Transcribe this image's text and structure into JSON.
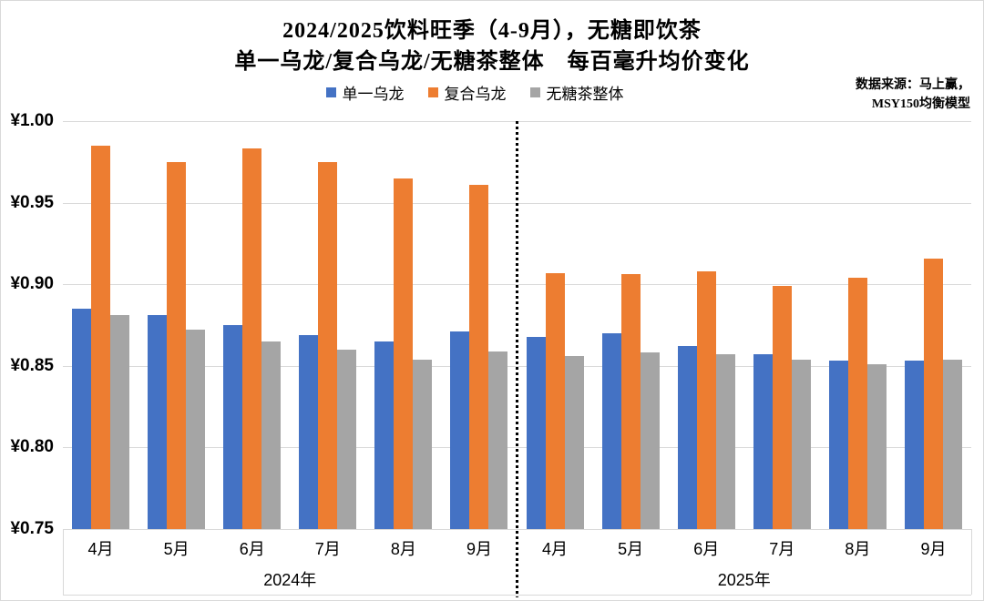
{
  "chart_data": {
    "type": "bar",
    "title_line1": "2024/2025饮料旺季（4-9月），无糖即饮茶",
    "title_line2": "单一乌龙/复合乌龙/无糖茶整体　每百毫升均价变化",
    "source_note": {
      "line1": "数据来源：马上赢，",
      "line2": "MSY150均衡模型"
    },
    "y_axis": {
      "min": 0.75,
      "max": 1.0,
      "tick_step": 0.05,
      "tick_labels": [
        "¥1.00",
        "¥0.95",
        "¥0.90",
        "¥0.85",
        "¥0.80",
        "¥0.75"
      ],
      "grid": true
    },
    "legend_position": "top-center",
    "legend": [
      {
        "label": "单一乌龙",
        "color": "#4472C4"
      },
      {
        "label": "复合乌龙",
        "color": "#ED7D31"
      },
      {
        "label": "无糖茶整体",
        "color": "#A5A5A5"
      }
    ],
    "groups": [
      {
        "year_label": "2024年",
        "categories": [
          "4月",
          "5月",
          "6月",
          "7月",
          "8月",
          "9月"
        ],
        "series": [
          {
            "name": "单一乌龙",
            "color": "#4472C4",
            "values": [
              0.885,
              0.881,
              0.875,
              0.869,
              0.865,
              0.871
            ]
          },
          {
            "name": "复合乌龙",
            "color": "#ED7D31",
            "values": [
              0.985,
              0.975,
              0.983,
              0.975,
              0.965,
              0.961
            ]
          },
          {
            "name": "无糖茶整体",
            "color": "#A5A5A5",
            "values": [
              0.881,
              0.872,
              0.865,
              0.86,
              0.854,
              0.859
            ]
          }
        ]
      },
      {
        "year_label": "2025年",
        "categories": [
          "4月",
          "5月",
          "6月",
          "7月",
          "8月",
          "9月"
        ],
        "series": [
          {
            "name": "单一乌龙",
            "color": "#4472C4",
            "values": [
              0.868,
              0.87,
              0.862,
              0.857,
              0.853,
              0.853
            ]
          },
          {
            "name": "复合乌龙",
            "color": "#ED7D31",
            "values": [
              0.907,
              0.906,
              0.908,
              0.899,
              0.904,
              0.916
            ]
          },
          {
            "name": "无糖茶整体",
            "color": "#A5A5A5",
            "values": [
              0.856,
              0.858,
              0.857,
              0.854,
              0.851,
              0.854
            ]
          }
        ]
      }
    ],
    "divider": {
      "style": "dotted",
      "color": "#000000",
      "between": [
        "2024年",
        "2025年"
      ]
    }
  }
}
